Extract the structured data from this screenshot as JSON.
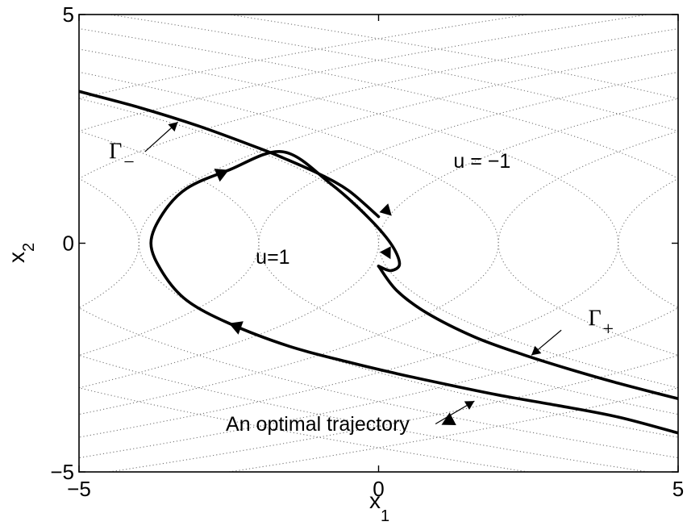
{
  "chart_data": {
    "type": "line",
    "title": "",
    "xlabel": "x",
    "xlabel_sub": "1",
    "ylabel": "x",
    "ylabel_sub": "2",
    "xlim": [
      -5,
      5
    ],
    "ylim": [
      -5,
      5
    ],
    "x_ticks": [
      "−5",
      "0",
      "5"
    ],
    "y_ticks": [
      "5",
      "0",
      "−5"
    ],
    "grid": false,
    "legend": "none",
    "colors": {
      "curve": "#000000",
      "field": "#777777"
    },
    "background_field": {
      "style": "dotted",
      "description_values": {
        "parabola_offsets_minus": [
          -12,
          -10,
          -8,
          -6,
          -4,
          -2,
          0,
          2,
          4,
          6,
          8,
          10
        ],
        "parabola_offsets_plus": [
          -10,
          -8,
          -6,
          -4,
          -2,
          0,
          2,
          4,
          6,
          8,
          10,
          12
        ]
      }
    },
    "series": [
      {
        "role": "switching-curve-gamma-minus",
        "x": [
          -5.0,
          -4.0,
          -3.0,
          -2.0,
          -1.6,
          -1.0,
          -0.5,
          0.0
        ],
        "y": [
          3.32,
          2.97,
          2.56,
          2.08,
          1.87,
          1.52,
          1.15,
          0.58
        ]
      },
      {
        "role": "switching-curve-gamma-plus",
        "x": [
          0.0,
          0.3,
          0.8,
          1.6,
          2.4,
          3.2,
          4.0,
          5.0
        ],
        "y": [
          -0.5,
          -1.03,
          -1.52,
          -2.05,
          -2.43,
          -2.76,
          -3.06,
          -3.4
        ]
      },
      {
        "role": "optimal-trajectory",
        "x": [
          5.0,
          4.0,
          3.0,
          2.0,
          1.0,
          0.3,
          -0.5,
          -1.5,
          -2.5,
          -3.2,
          -3.6,
          -3.8,
          -3.6,
          -3.2,
          -2.5,
          -1.6,
          -0.8,
          -0.2,
          0.2,
          0.35,
          0.2,
          0.0
        ],
        "y": [
          -4.15,
          -3.8,
          -3.55,
          -3.32,
          -3.05,
          -2.85,
          -2.6,
          -2.25,
          -1.75,
          -1.25,
          -0.65,
          0.0,
          0.65,
          1.2,
          1.6,
          2.0,
          1.3,
          0.6,
          0.0,
          -0.45,
          -0.6,
          -0.5
        ]
      }
    ],
    "annotations": [
      {
        "text": "u = −1",
        "x": 1.25,
        "y": 1.65
      },
      {
        "text": "u=1",
        "x": -2.05,
        "y": -0.45
      },
      {
        "text": "An optimal trajectory",
        "x": -2.55,
        "y": -4.1
      },
      {
        "text": "Γ",
        "sub": "−",
        "x": -4.5,
        "y": 1.85
      },
      {
        "text": "Γ",
        "sub": "+",
        "x": 3.5,
        "y": -1.8
      }
    ]
  }
}
